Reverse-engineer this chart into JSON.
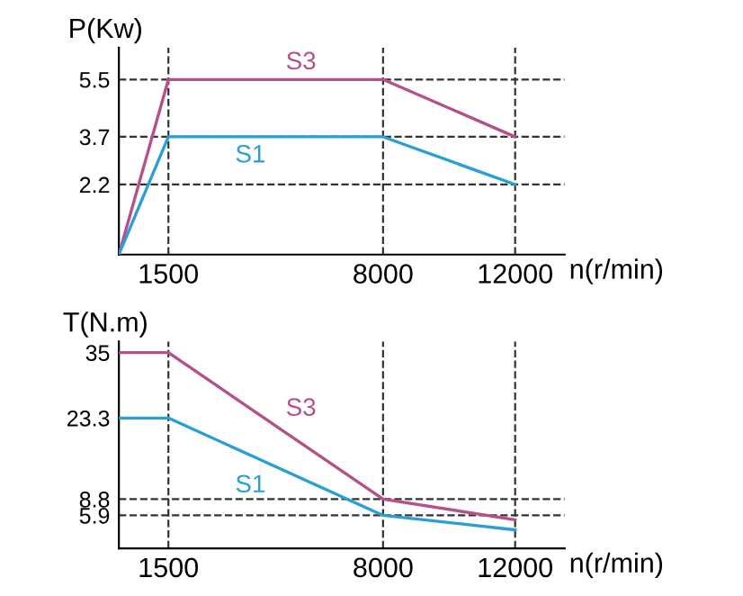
{
  "chart_data": [
    {
      "type": "line",
      "ylabel": "P(Kw)",
      "xlabel": "n(r/min)",
      "x": [
        0,
        1500,
        8000,
        12000
      ],
      "series": [
        {
          "name": "S3",
          "color": "#b5508a",
          "values": [
            0,
            5.5,
            5.5,
            3.7
          ]
        },
        {
          "name": "S1",
          "color": "#2a9fd6",
          "values": [
            0,
            3.7,
            3.7,
            2.2
          ]
        }
      ],
      "xlim": [
        0,
        13500
      ],
      "xticks": [
        1500,
        8000,
        12000
      ],
      "ylim": [
        0,
        6.5
      ],
      "yticks": [
        2.2,
        3.7,
        5.5
      ],
      "ref_lines": [
        {
          "axis": "x",
          "value": 1500,
          "color": "#333333",
          "line_style": "dashed"
        },
        {
          "axis": "x",
          "value": 8000,
          "color": "#333333",
          "line_style": "dashed"
        },
        {
          "axis": "x",
          "value": 12000,
          "color": "#333333",
          "line_style": "dashed"
        },
        {
          "axis": "y",
          "value": 5.5,
          "color": "#333333",
          "line_style": "dashed"
        },
        {
          "axis": "y",
          "value": 3.7,
          "color": "#333333",
          "line_style": "dashed"
        },
        {
          "axis": "y",
          "value": 2.2,
          "color": "#333333",
          "line_style": "dashed"
        }
      ],
      "grid": false,
      "legend": false,
      "marker": "none",
      "line_style": "solid"
    },
    {
      "type": "line",
      "ylabel": "T(N.m)",
      "xlabel": "n(r/min)",
      "x": [
        0,
        1500,
        8000,
        12000
      ],
      "series": [
        {
          "name": "S3",
          "color": "#b5508a",
          "values": [
            35,
            35,
            8.8,
            5.1
          ]
        },
        {
          "name": "S1",
          "color": "#2a9fd6",
          "values": [
            23.3,
            23.3,
            5.9,
            3.3
          ]
        }
      ],
      "xlim": [
        0,
        13500
      ],
      "xticks": [
        1500,
        8000,
        12000
      ],
      "ylim": [
        0,
        37
      ],
      "yticks": [
        5.9,
        8.8,
        23.3,
        35
      ],
      "ref_lines": [
        {
          "axis": "x",
          "value": 1500,
          "color": "#333333",
          "line_style": "dashed"
        },
        {
          "axis": "x",
          "value": 8000,
          "color": "#333333",
          "line_style": "dashed"
        },
        {
          "axis": "x",
          "value": 12000,
          "color": "#333333",
          "line_style": "dashed"
        },
        {
          "axis": "y",
          "value": 8.8,
          "color": "#333333",
          "line_style": "dashed"
        },
        {
          "axis": "y",
          "value": 5.9,
          "color": "#333333",
          "line_style": "dashed"
        }
      ],
      "grid": false,
      "legend": false,
      "marker": "none",
      "line_style": "solid"
    }
  ]
}
